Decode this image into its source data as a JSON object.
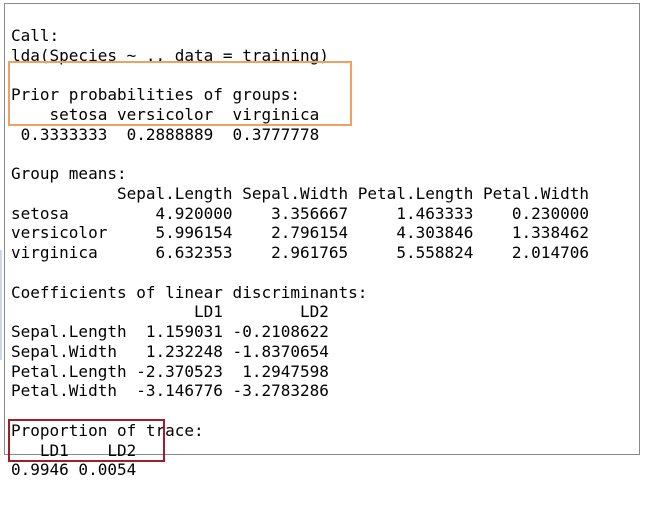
{
  "console": {
    "lines": [
      "Call:",
      "lda(Species ~ ., data = training)",
      "",
      "Prior probabilities of groups:",
      "    setosa versicolor  virginica",
      " 0.3333333  0.2888889  0.3777778",
      "",
      "Group means:",
      "           Sepal.Length Sepal.Width Petal.Length Petal.Width",
      "setosa         4.920000    3.356667     1.463333    0.230000",
      "versicolor     5.996154    2.796154     4.303846    1.338462",
      "virginica      6.632353    2.961765     5.558824    2.014706",
      "",
      "Coefficients of linear discriminants:",
      "                   LD1        LD2",
      "Sepal.Length  1.159031 -0.2108622",
      "Sepal.Width   1.232248 -1.8370654",
      "Petal.Length -2.370523  1.2947598",
      "Petal.Width  -3.146776 -3.2783286",
      "",
      "Proportion of trace:",
      "   LD1    LD2 ",
      "0.9946 0.0054 "
    ]
  },
  "highlight_colors": {
    "prior_box": "#f0a060",
    "trace_box": "#a01e28"
  }
}
